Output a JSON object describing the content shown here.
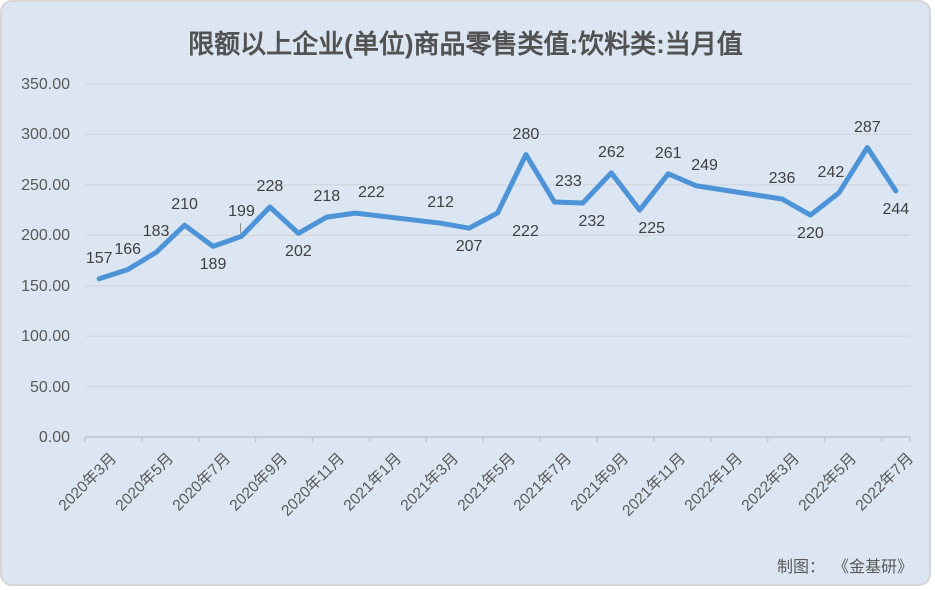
{
  "title": "限额以上企业(单位)商品零售类值:饮料类:当月值",
  "footer": {
    "prefix": "制图：",
    "source": "《金基研》"
  },
  "chart_data": {
    "type": "line",
    "title": "限额以上企业(单位)商品零售类值:饮料类:当月值",
    "xlabel": "",
    "ylabel": "",
    "legend": "none",
    "grid": true,
    "ylim": [
      0,
      350
    ],
    "n_slots": 29,
    "y_tick_labels": [
      "350.00",
      "300.00",
      "250.00",
      "200.00",
      "150.00",
      "100.00",
      "50.00",
      "0.00"
    ],
    "x_tick_labels": [
      "2020年3月",
      "2020年5月",
      "2020年7月",
      "2020年9月",
      "2020年11月",
      "2021年1月",
      "2021年3月",
      "2021年5月",
      "2021年7月",
      "2021年9月",
      "2021年11月",
      "2022年1月",
      "2022年3月",
      "2022年5月",
      "2022年7月"
    ],
    "points": [
      {
        "slot": 0,
        "month": "2020年3月",
        "value": 157,
        "label": "above"
      },
      {
        "slot": 1,
        "month": "2020年4月",
        "value": 166,
        "label": "above"
      },
      {
        "slot": 2,
        "month": "2020年5月",
        "value": 183,
        "label": "above"
      },
      {
        "slot": 3,
        "month": "2020年6月",
        "value": 210,
        "label": "above"
      },
      {
        "slot": 4,
        "month": "2020年7月",
        "value": 189,
        "label": "below"
      },
      {
        "slot": 5,
        "month": "2020年8月",
        "value": 199,
        "label": "above",
        "dy": -4,
        "leader": true
      },
      {
        "slot": 6,
        "month": "2020年9月",
        "value": 228,
        "label": "above"
      },
      {
        "slot": 7,
        "month": "2020年10月",
        "value": 202,
        "label": "below"
      },
      {
        "slot": 8,
        "month": "2020年11月",
        "value": 218,
        "label": "above"
      },
      {
        "slot": 9,
        "month": "2020年12月",
        "value": 222,
        "label": "above",
        "dx": 16
      },
      {
        "slot": 12,
        "month": "2021年3月",
        "value": 212,
        "label": "above"
      },
      {
        "slot": 13,
        "month": "2021年4月",
        "value": 207,
        "label": "below"
      },
      {
        "slot": 14,
        "month": "2021年5月",
        "value": 222,
        "label": "below",
        "dx": 28
      },
      {
        "slot": 15,
        "month": "2021年6月",
        "value": 280,
        "label": "above"
      },
      {
        "slot": 16,
        "month": "2021年7月",
        "value": 233,
        "label": "above",
        "dx": 14
      },
      {
        "slot": 17,
        "month": "2021年8月",
        "value": 232,
        "label": "below",
        "dx": 9
      },
      {
        "slot": 18,
        "month": "2021年9月",
        "value": 262,
        "label": "above"
      },
      {
        "slot": 19,
        "month": "2021年10月",
        "value": 225,
        "label": "below",
        "dx": 12
      },
      {
        "slot": 20,
        "month": "2021年11月",
        "value": 261,
        "label": "above"
      },
      {
        "slot": 21,
        "month": "2021年12月",
        "value": 249,
        "label": "above",
        "dx": 8
      },
      {
        "slot": 24,
        "month": "2022年3月",
        "value": 236,
        "label": "above"
      },
      {
        "slot": 25,
        "month": "2022年4月",
        "value": 220,
        "label": "below"
      },
      {
        "slot": 26,
        "month": "2022年5月",
        "value": 242,
        "label": "above",
        "dx": -8
      },
      {
        "slot": 27,
        "month": "2022年6月",
        "value": 287,
        "label": "above"
      },
      {
        "slot": 28,
        "month": "2022年7月",
        "value": 244,
        "label": "below"
      }
    ],
    "gap_slots": [
      10,
      11,
      22,
      23
    ],
    "colors": {
      "background": "#dce6f2",
      "line": "#4d93d8",
      "grid": "#d2d6dc",
      "axis": "#bdc3ca",
      "title_text": "#525252",
      "data_label_text": "#3f3f3f",
      "axis_text": "#595959",
      "leader": "#8a8f96"
    }
  }
}
